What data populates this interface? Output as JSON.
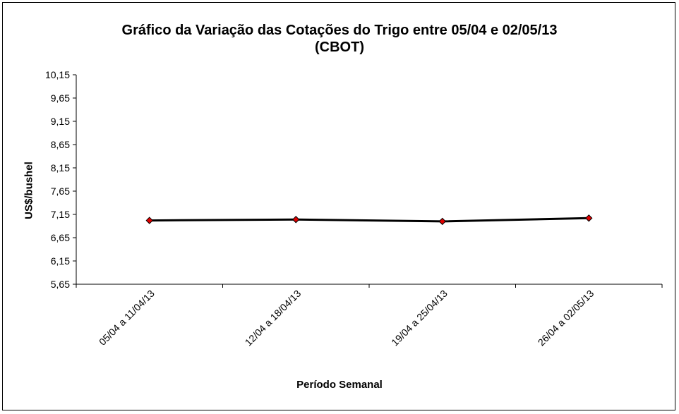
{
  "chart_data": {
    "type": "line",
    "title": "Gráfico da Variação das Cotações do Trigo entre 05/04 e 02/05/13",
    "subtitle": "(CBOT)",
    "xlabel": "Período Semanal",
    "ylabel": "US$/bushel",
    "categories": [
      "05/04 a 11/04/13",
      "12/04 a 18/04/13",
      "19/04 a 25/04/13",
      "26/04 a 02/05/13"
    ],
    "series": [
      {
        "values": [
          7.02,
          7.04,
          7.0,
          7.07
        ],
        "color": "#000000",
        "marker_color": "#e00000"
      }
    ],
    "yticks": [
      "10,15",
      "9,65",
      "9,15",
      "8,65",
      "8,15",
      "7,65",
      "7,15",
      "6,65",
      "6,15",
      "5,65"
    ],
    "ylim": [
      5.65,
      10.15
    ],
    "ystep": 0.5,
    "grid": false,
    "legend": "none"
  }
}
